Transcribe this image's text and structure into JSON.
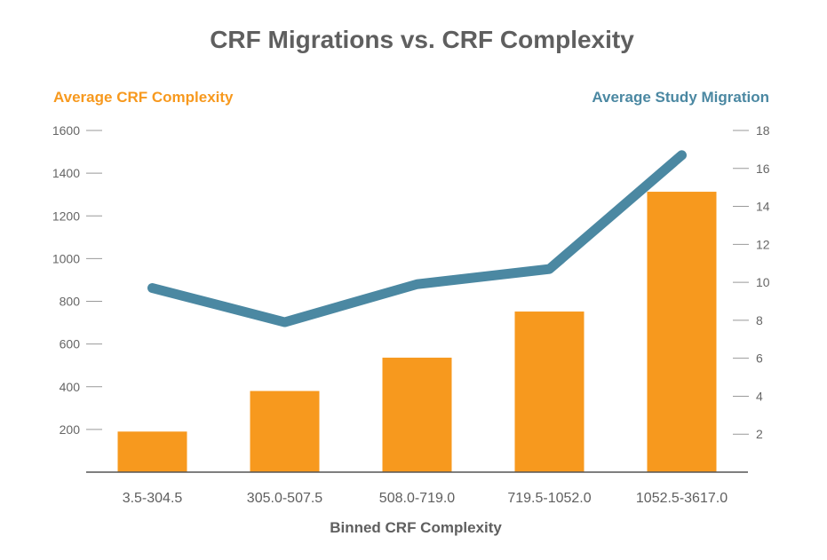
{
  "chart_data": {
    "type": "bar+line",
    "title": "CRF Migrations vs. CRF Complexity",
    "xlabel": "Binned CRF Complexity",
    "categories": [
      "3.5-304.5",
      "305.0-507.5",
      "508.0-719.0",
      "719.5-1052.0",
      "1052.5-3617.0"
    ],
    "series": [
      {
        "name": "Average CRF Complexity",
        "type": "bar",
        "axis": "left",
        "color": "#F7991E",
        "values": [
          190,
          380,
          536,
          752,
          1313
        ]
      },
      {
        "name": "Average Study Migration",
        "type": "line",
        "axis": "right",
        "color": "#4B88A2",
        "values": [
          9.7,
          7.9,
          9.9,
          10.7,
          16.7
        ]
      }
    ],
    "left_axis": {
      "label": "Average CRF Complexity",
      "ylim": [
        0,
        1600
      ],
      "ticks": [
        200,
        400,
        600,
        800,
        1000,
        1200,
        1400,
        1600
      ]
    },
    "right_axis": {
      "label": "Average Study Migration",
      "ylim": [
        0,
        18
      ],
      "ticks": [
        2,
        4,
        6,
        8,
        10,
        12,
        14,
        16,
        18
      ]
    },
    "grid": false
  }
}
